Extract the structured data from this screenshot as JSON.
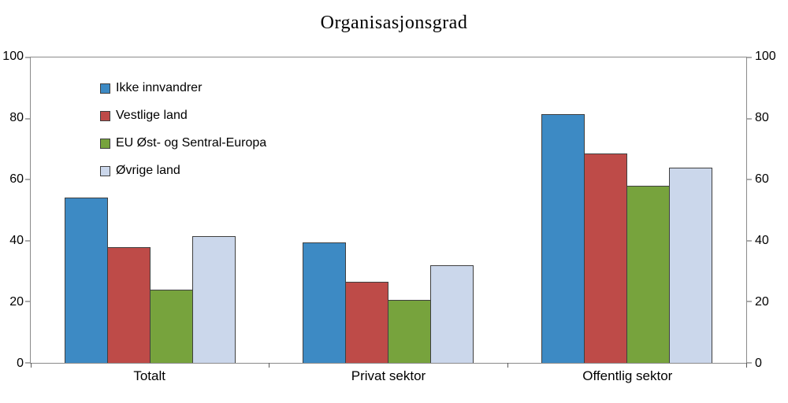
{
  "chart_data": {
    "type": "bar",
    "title": "Organisasjonsgrad",
    "categories": [
      "Totalt",
      "Privat sektor",
      "Offentlig sektor"
    ],
    "series": [
      {
        "name": "Ikke innvandrer",
        "color": "#3D8AC4",
        "values": [
          54,
          39.5,
          81.5
        ]
      },
      {
        "name": "Vestlige land",
        "color": "#BE4B48",
        "values": [
          38,
          26.5,
          68.5
        ]
      },
      {
        "name": "EU Øst- og Sentral-Europa",
        "color": "#77A33D",
        "values": [
          24,
          20.5,
          58
        ]
      },
      {
        "name": "Øvrige land",
        "color": "#CBD7EB",
        "values": [
          41.5,
          32,
          64
        ]
      }
    ],
    "ylim": [
      0,
      100
    ],
    "yticks": [
      0,
      20,
      40,
      60,
      80,
      100
    ],
    "yticks_right": [
      0,
      20,
      40,
      60,
      80,
      100
    ],
    "grid": false,
    "legend_position": "upper-left-inside",
    "bar_outline_color": "#3F3F3F",
    "axis_color": "#8A8A8A"
  }
}
